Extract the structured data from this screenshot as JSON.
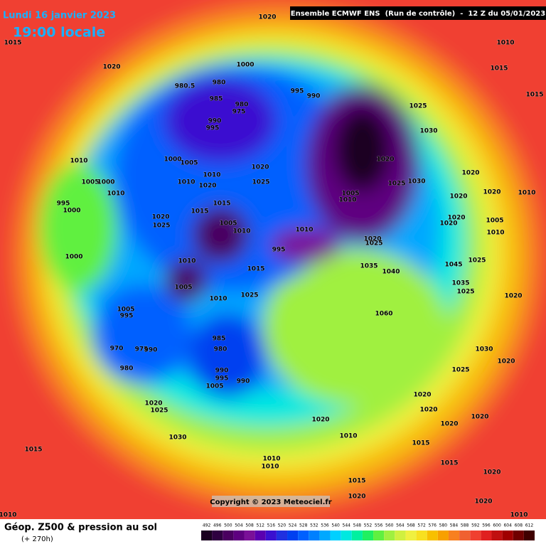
{
  "header": {
    "date": "Lundi 16 janvier 2023",
    "time": "19:00 locale",
    "model": "Ensemble ECMWF ENS  (Run de contrôle)  -  12 Z du 05/01/2023"
  },
  "copyright": "Copyright © 2023 Meteociel.fr",
  "legend": {
    "title": "Géop. Z500 & pression au sol",
    "lead": "(+ 270h)",
    "scale": [
      492,
      496,
      500,
      504,
      508,
      512,
      516,
      520,
      524,
      528,
      532,
      536,
      540,
      544,
      548,
      552,
      556,
      560,
      564,
      568,
      572,
      576,
      580,
      584,
      588,
      592,
      596,
      600,
      604,
      608,
      612
    ],
    "colors": [
      "#1a0020",
      "#2e0040",
      "#4a0060",
      "#5e0080",
      "#7a1098",
      "#5a00b0",
      "#3a10d0",
      "#2030e0",
      "#0040f0",
      "#0060ff",
      "#0080ff",
      "#00a8ff",
      "#00d0ff",
      "#00e8e0",
      "#00f0a0",
      "#20f060",
      "#60f040",
      "#a0f040",
      "#d0f040",
      "#f0f040",
      "#f8e020",
      "#f8c000",
      "#f8a000",
      "#f88020",
      "#f06030",
      "#f04030",
      "#e02020",
      "#c01010",
      "#a00000",
      "#700000",
      "#400000"
    ]
  },
  "pressure_labels": [
    1020,
    1015,
    1010,
    1020,
    1000,
    1015,
    1015,
    980.5,
    980,
    995,
    990,
    985,
    980,
    975,
    1025,
    990,
    995,
    1030,
    1010,
    1000,
    1005,
    1010,
    1020,
    1020,
    1020,
    1005,
    1000,
    1010,
    1020,
    1025,
    1025,
    1030,
    1010,
    1005,
    1010,
    1020,
    1020,
    1010,
    995,
    1000,
    1015,
    1015,
    1020,
    1025,
    1005,
    1010,
    1010,
    1020,
    1020,
    1005,
    1010,
    1020,
    1025,
    995,
    1000,
    1010,
    1015,
    1025,
    1035,
    1040,
    1045,
    1005,
    1010,
    1025,
    1060,
    1035,
    1025,
    1020,
    1005,
    995,
    970,
    975,
    990,
    980,
    985,
    980,
    990,
    995,
    1005,
    990,
    1030,
    1025,
    1020,
    1020,
    1020,
    1020,
    1025,
    1020,
    1020,
    1030,
    1020,
    1010,
    1015,
    1015,
    1015,
    1010,
    1010,
    1020,
    1015,
    1020,
    1020,
    1010,
    1010
  ]
}
